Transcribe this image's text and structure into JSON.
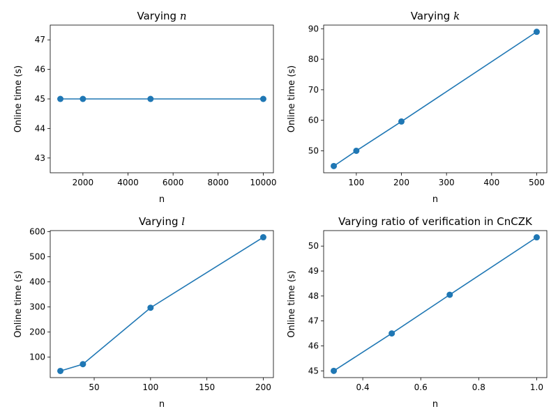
{
  "colors": {
    "series": "#1f77b4"
  },
  "chart_data": [
    {
      "type": "line",
      "title": "Varying ",
      "title_var": "n",
      "xlabel": "n",
      "ylabel": "Online time (s)",
      "x": [
        1000,
        2000,
        5000,
        10000
      ],
      "y": [
        45,
        45,
        45,
        45
      ],
      "xlim": [
        550,
        10450
      ],
      "ylim": [
        42.5,
        47.5
      ],
      "xticks": [
        2000,
        4000,
        6000,
        8000,
        10000
      ],
      "xtick_labels": [
        "2000",
        "4000",
        "6000",
        "8000",
        "10000"
      ],
      "yticks": [
        43,
        44,
        45,
        46,
        47
      ],
      "ytick_labels": [
        "43",
        "44",
        "45",
        "46",
        "47"
      ]
    },
    {
      "type": "line",
      "title": "Varying ",
      "title_var": "k",
      "xlabel": "n",
      "ylabel": "Online time (s)",
      "x": [
        50,
        100,
        200,
        500
      ],
      "y": [
        45,
        50,
        59.6,
        89
      ],
      "xlim": [
        27.5,
        522.5
      ],
      "ylim": [
        42.8,
        91.2
      ],
      "xticks": [
        100,
        200,
        300,
        400,
        500
      ],
      "xtick_labels": [
        "100",
        "200",
        "300",
        "400",
        "500"
      ],
      "yticks": [
        50,
        60,
        70,
        80,
        90
      ],
      "ytick_labels": [
        "50",
        "60",
        "70",
        "80",
        "90"
      ]
    },
    {
      "type": "line",
      "title": "Varying ",
      "title_var": "l",
      "xlabel": "n",
      "ylabel": "Online time (s)",
      "x": [
        20,
        40,
        100,
        200
      ],
      "y": [
        45,
        72,
        297,
        578
      ],
      "xlim": [
        11,
        209
      ],
      "ylim": [
        18.5,
        604.5
      ],
      "xticks": [
        50,
        100,
        150,
        200
      ],
      "xtick_labels": [
        "50",
        "100",
        "150",
        "200"
      ],
      "yticks": [
        100,
        200,
        300,
        400,
        500,
        600
      ],
      "ytick_labels": [
        "100",
        "200",
        "300",
        "400",
        "500",
        "600"
      ]
    },
    {
      "type": "line",
      "title": "Varying ratio of verification in CnCZK",
      "title_var": "",
      "xlabel": "n",
      "ylabel": "Online time (s)",
      "x": [
        0.3,
        0.5,
        0.7,
        1.0
      ],
      "y": [
        45,
        46.5,
        48.05,
        50.35
      ],
      "xlim": [
        0.265,
        1.035
      ],
      "ylim": [
        44.73,
        50.62
      ],
      "xticks": [
        0.4,
        0.6,
        0.8,
        1.0
      ],
      "xtick_labels": [
        "0.4",
        "0.6",
        "0.8",
        "1.0"
      ],
      "yticks": [
        45,
        46,
        47,
        48,
        49,
        50
      ],
      "ytick_labels": [
        "45",
        "46",
        "47",
        "48",
        "49",
        "50"
      ]
    }
  ]
}
